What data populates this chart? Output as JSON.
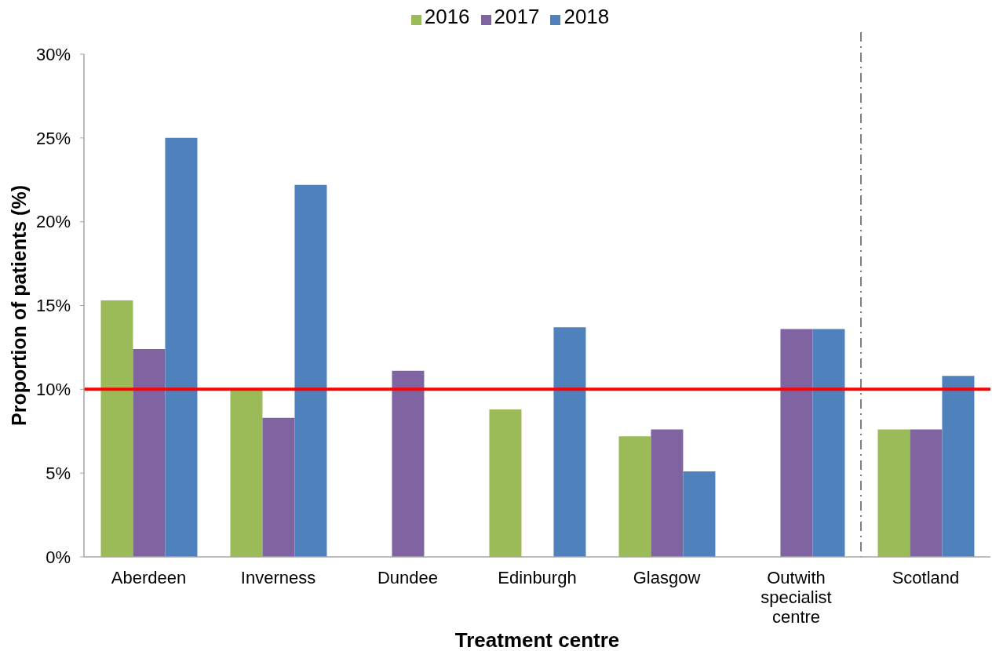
{
  "chart_data": {
    "type": "bar",
    "xlabel": "Treatment centre",
    "ylabel": "Proportion of patients (%)",
    "categories": [
      "Aberdeen",
      "Inverness",
      "Dundee",
      "Edinburgh",
      "Glasgow",
      "Outwith specialist centre",
      "Scotland"
    ],
    "series": [
      {
        "name": "2016",
        "color": "#9bbb59",
        "values": [
          15.3,
          10.0,
          null,
          8.8,
          7.2,
          null,
          7.6
        ]
      },
      {
        "name": "2017",
        "color": "#8064a2",
        "values": [
          12.4,
          8.3,
          11.1,
          null,
          7.6,
          13.6,
          7.6
        ]
      },
      {
        "name": "2018",
        "color": "#4f81bd",
        "values": [
          25.0,
          22.2,
          null,
          13.7,
          5.1,
          13.6,
          10.8
        ]
      }
    ],
    "ylim": [
      0,
      30
    ],
    "yticks": [
      {
        "value": 0,
        "label": "0%"
      },
      {
        "value": 5,
        "label": "5%"
      },
      {
        "value": 10,
        "label": "10%"
      },
      {
        "value": 15,
        "label": "15%"
      },
      {
        "value": 20,
        "label": "20%"
      },
      {
        "value": 25,
        "label": "25%"
      },
      {
        "value": 30,
        "label": "30%"
      }
    ],
    "legend": "top",
    "ref_lines": [
      {
        "axis": "y",
        "value": 10,
        "color": "#ff0000",
        "line_style": "solid"
      }
    ]
  }
}
